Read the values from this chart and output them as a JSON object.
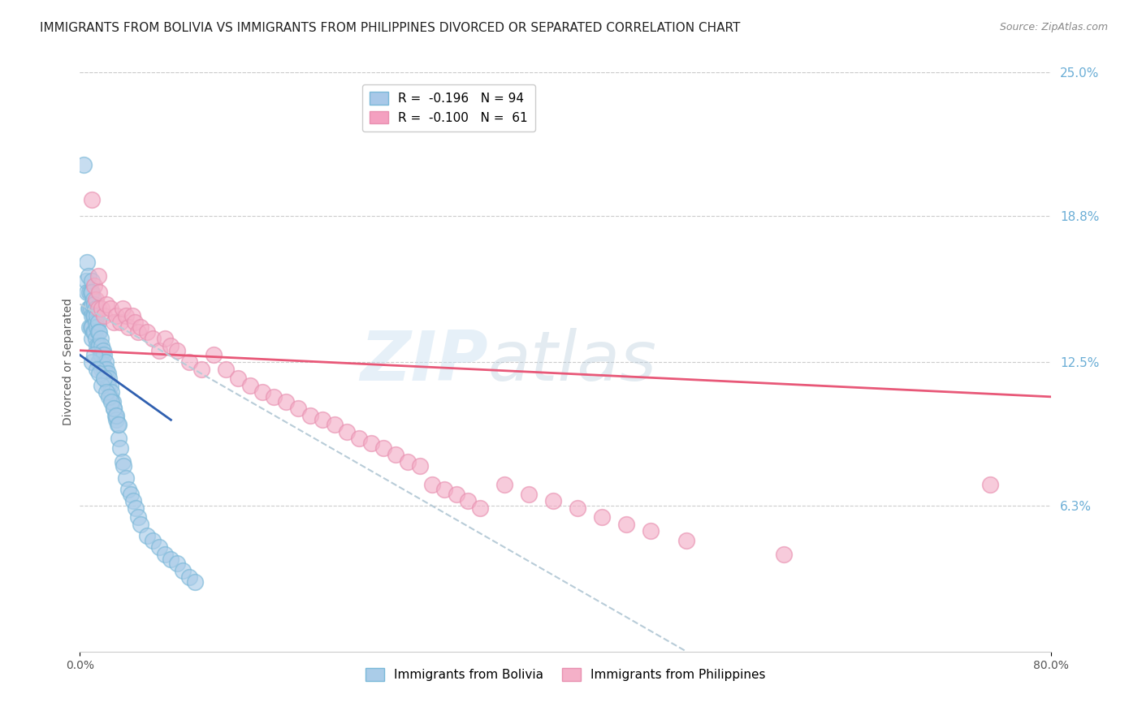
{
  "title": "IMMIGRANTS FROM BOLIVIA VS IMMIGRANTS FROM PHILIPPINES DIVORCED OR SEPARATED CORRELATION CHART",
  "source": "Source: ZipAtlas.com",
  "ylabel": "Divorced or Separated",
  "right_yticks": [
    "25.0%",
    "18.8%",
    "12.5%",
    "6.3%"
  ],
  "right_ytick_vals": [
    0.25,
    0.188,
    0.125,
    0.063
  ],
  "legend_top": [
    {
      "label": "R =  -0.196   N = 94",
      "color": "#a8c8e8"
    },
    {
      "label": "R =  -0.100   N =  61",
      "color": "#f4a0c0"
    }
  ],
  "legend_bottom_bolivia": "Immigrants from Bolivia",
  "legend_bottom_philippines": "Immigrants from Philippines",
  "watermark_zip": "ZIP",
  "watermark_atlas": "atlas",
  "bolivia_color": "#7ab8d8",
  "bolivia_face": "#aacce8",
  "philippines_color": "#e890b0",
  "philippines_face": "#f4b0c8",
  "bolivia_trend_color": "#3060b0",
  "philippines_trend_color": "#e85878",
  "dashed_trend_color": "#b8ccd8",
  "xlim": [
    0.0,
    0.8
  ],
  "ylim": [
    0.0,
    0.25
  ],
  "bolivia_scatter_x": [
    0.003,
    0.005,
    0.006,
    0.006,
    0.007,
    0.007,
    0.008,
    0.008,
    0.008,
    0.009,
    0.009,
    0.009,
    0.01,
    0.01,
    0.01,
    0.01,
    0.01,
    0.01,
    0.011,
    0.011,
    0.011,
    0.012,
    0.012,
    0.012,
    0.013,
    0.013,
    0.013,
    0.014,
    0.014,
    0.014,
    0.015,
    0.015,
    0.015,
    0.015,
    0.016,
    0.016,
    0.016,
    0.017,
    0.017,
    0.018,
    0.018,
    0.018,
    0.019,
    0.019,
    0.02,
    0.02,
    0.02,
    0.021,
    0.021,
    0.022,
    0.022,
    0.023,
    0.023,
    0.024,
    0.025,
    0.025,
    0.026,
    0.027,
    0.028,
    0.029,
    0.03,
    0.031,
    0.032,
    0.033,
    0.035,
    0.036,
    0.038,
    0.04,
    0.042,
    0.044,
    0.046,
    0.048,
    0.05,
    0.055,
    0.06,
    0.065,
    0.07,
    0.075,
    0.08,
    0.085,
    0.09,
    0.095,
    0.01,
    0.012,
    0.014,
    0.016,
    0.018,
    0.02,
    0.022,
    0.024,
    0.026,
    0.028,
    0.03,
    0.032
  ],
  "bolivia_scatter_y": [
    0.21,
    0.16,
    0.168,
    0.155,
    0.162,
    0.148,
    0.155,
    0.148,
    0.14,
    0.155,
    0.148,
    0.14,
    0.16,
    0.155,
    0.15,
    0.145,
    0.14,
    0.135,
    0.152,
    0.145,
    0.138,
    0.15,
    0.145,
    0.138,
    0.148,
    0.142,
    0.135,
    0.145,
    0.14,
    0.132,
    0.142,
    0.138,
    0.132,
    0.125,
    0.138,
    0.132,
    0.125,
    0.135,
    0.128,
    0.132,
    0.128,
    0.122,
    0.13,
    0.124,
    0.128,
    0.122,
    0.118,
    0.125,
    0.12,
    0.122,
    0.118,
    0.12,
    0.115,
    0.118,
    0.115,
    0.11,
    0.112,
    0.108,
    0.105,
    0.102,
    0.1,
    0.098,
    0.092,
    0.088,
    0.082,
    0.08,
    0.075,
    0.07,
    0.068,
    0.065,
    0.062,
    0.058,
    0.055,
    0.05,
    0.048,
    0.045,
    0.042,
    0.04,
    0.038,
    0.035,
    0.032,
    0.03,
    0.125,
    0.128,
    0.122,
    0.12,
    0.115,
    0.118,
    0.112,
    0.11,
    0.108,
    0.105,
    0.102,
    0.098
  ],
  "philippines_scatter_x": [
    0.01,
    0.012,
    0.013,
    0.015,
    0.016,
    0.018,
    0.02,
    0.022,
    0.025,
    0.028,
    0.03,
    0.033,
    0.035,
    0.038,
    0.04,
    0.043,
    0.045,
    0.048,
    0.05,
    0.055,
    0.06,
    0.065,
    0.07,
    0.075,
    0.08,
    0.09,
    0.1,
    0.11,
    0.12,
    0.13,
    0.14,
    0.15,
    0.16,
    0.17,
    0.18,
    0.19,
    0.2,
    0.21,
    0.22,
    0.23,
    0.24,
    0.25,
    0.26,
    0.27,
    0.28,
    0.29,
    0.3,
    0.31,
    0.32,
    0.33,
    0.35,
    0.37,
    0.39,
    0.41,
    0.43,
    0.45,
    0.47,
    0.5,
    0.58,
    0.75,
    0.015
  ],
  "philippines_scatter_y": [
    0.195,
    0.158,
    0.152,
    0.148,
    0.155,
    0.148,
    0.145,
    0.15,
    0.148,
    0.142,
    0.145,
    0.142,
    0.148,
    0.145,
    0.14,
    0.145,
    0.142,
    0.138,
    0.14,
    0.138,
    0.135,
    0.13,
    0.135,
    0.132,
    0.13,
    0.125,
    0.122,
    0.128,
    0.122,
    0.118,
    0.115,
    0.112,
    0.11,
    0.108,
    0.105,
    0.102,
    0.1,
    0.098,
    0.095,
    0.092,
    0.09,
    0.088,
    0.085,
    0.082,
    0.08,
    0.072,
    0.07,
    0.068,
    0.065,
    0.062,
    0.072,
    0.068,
    0.065,
    0.062,
    0.058,
    0.055,
    0.052,
    0.048,
    0.042,
    0.072,
    0.162
  ],
  "bolivia_trend_x": [
    0.0,
    0.075
  ],
  "bolivia_trend_y": [
    0.128,
    0.1
  ],
  "philippines_trend_x": [
    0.0,
    0.8
  ],
  "philippines_trend_y": [
    0.13,
    0.11
  ],
  "dashed_trend_x": [
    0.0,
    0.5
  ],
  "dashed_trend_y": [
    0.15,
    0.0
  ],
  "background_color": "#ffffff",
  "grid_color": "#cccccc",
  "title_fontsize": 11,
  "axis_label_fontsize": 10,
  "tick_label_fontsize": 10,
  "legend_fontsize": 11
}
